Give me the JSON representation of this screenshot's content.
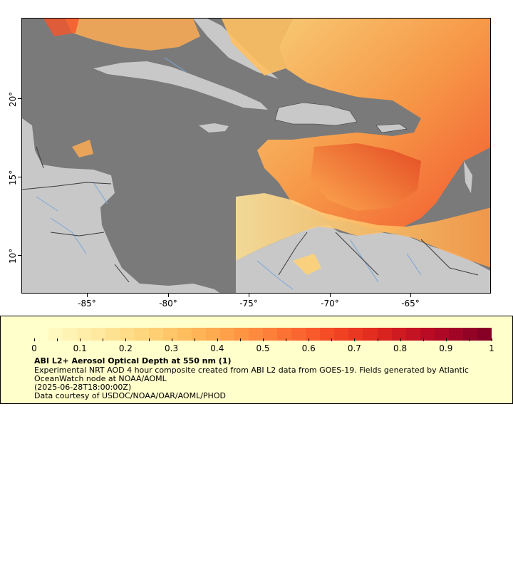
{
  "map": {
    "x_ticks": [
      "-85°",
      "-80°",
      "-75°",
      "-70°",
      "-65°"
    ],
    "y_ticks": [
      "20°",
      "15°",
      "10°"
    ],
    "colors": {
      "ocean": "#7a7a7a",
      "land": "#c8c8c8",
      "borders": "#3a3a3a",
      "rivers": "#7aa7d8"
    }
  },
  "legend": {
    "colorbar_ticks": [
      "0",
      "0.1",
      "0.2",
      "0.3",
      "0.4",
      "0.5",
      "0.6",
      "0.7",
      "0.8",
      "0.9",
      "1"
    ],
    "colormap": [
      "#ffffcc",
      "#fff3b5",
      "#ffe9a0",
      "#fedd8a",
      "#fed176",
      "#fec062",
      "#feae52",
      "#fd9a45",
      "#fd853b",
      "#fc6d33",
      "#f8552a",
      "#ef3e22",
      "#e02a1e",
      "#cc1820",
      "#b80b24",
      "#a00526",
      "#860026"
    ],
    "title": "ABI L2+ Aerosol Optical Depth at 550 nm (1)",
    "description": "Experimental NRT AOD 4 hour composite created from ABI L2 data from GOES-19. Fields generated by Atlantic OceanWatch node at NOAA/AOML",
    "timestamp": "(2025-06-28T18:00:00Z)",
    "credit": "Data courtesy of USDOC/NOAA/OAR/AOML/PHOD"
  }
}
